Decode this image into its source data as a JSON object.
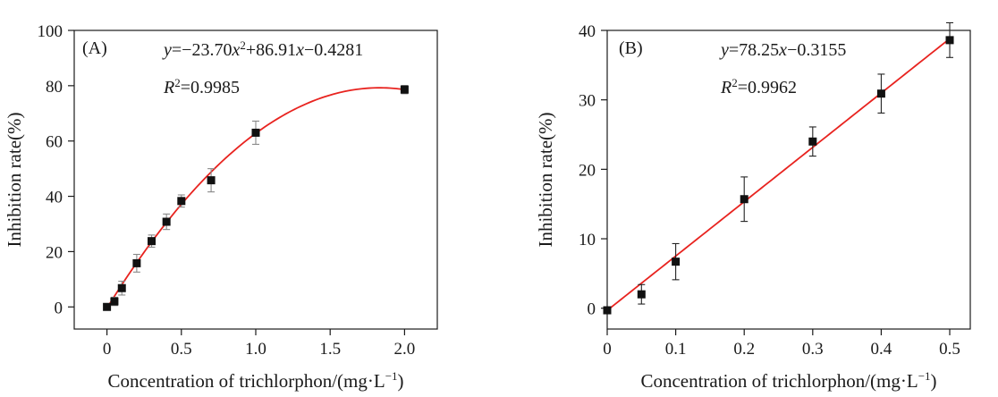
{
  "chart_data": [
    {
      "type": "scatter",
      "panel": "(A)",
      "equation": {
        "lhs": "y",
        "rhs_parts": [
          "=−23.70",
          "x",
          "2",
          "+86.91",
          "x",
          "−0.4281"
        ]
      },
      "r2": {
        "symbol": "R",
        "sup": "2",
        "value": "=0.9985"
      },
      "fit": {
        "kind": "quadratic",
        "coefficients": [
          -23.7,
          86.91,
          -0.4281
        ]
      },
      "xlabel": "Concentration of trichlorphon/(mg·L",
      "xlabel_sup": "−1",
      "xlabel_close": ")",
      "ylabel": "Inhibition rate(%)",
      "xlim": [
        -0.22,
        2.22
      ],
      "ylim": [
        -8,
        100
      ],
      "xticks": [
        0,
        0.5,
        1.0,
        1.5,
        2.0
      ],
      "xtick_labels": [
        "0",
        "0.5",
        "1.0",
        "1.5",
        "2.0"
      ],
      "yticks": [
        0,
        20,
        40,
        60,
        80,
        100
      ],
      "ytick_labels": [
        "0",
        "20",
        "40",
        "60",
        "80",
        "100"
      ],
      "points": [
        {
          "x": 0.0,
          "y": 0.0,
          "err": 0.5
        },
        {
          "x": 0.05,
          "y": 2.0,
          "err": 1.5
        },
        {
          "x": 0.1,
          "y": 6.8,
          "err": 2.5
        },
        {
          "x": 0.2,
          "y": 15.8,
          "err": 3.2
        },
        {
          "x": 0.3,
          "y": 23.8,
          "err": 2.2
        },
        {
          "x": 0.4,
          "y": 30.8,
          "err": 2.8
        },
        {
          "x": 0.5,
          "y": 38.3,
          "err": 2.2
        },
        {
          "x": 0.7,
          "y": 45.8,
          "err": 4.2
        },
        {
          "x": 1.0,
          "y": 63.0,
          "err": 4.2
        },
        {
          "x": 2.0,
          "y": 78.6,
          "err": 1.5
        }
      ],
      "fit_range": [
        0.0,
        2.0
      ],
      "fit_color": "#e8231f",
      "error_bar_color": "#888888"
    },
    {
      "type": "scatter",
      "panel": "(B)",
      "equation": {
        "lhs": "y",
        "rhs_parts": [
          "=78.25",
          "x",
          "−0.3155"
        ]
      },
      "r2": {
        "symbol": "R",
        "sup": "2",
        "value": "=0.9962"
      },
      "fit": {
        "kind": "linear",
        "coefficients": [
          78.25,
          -0.3155
        ]
      },
      "xlabel": "Concentration of trichlorphon/(mg·L",
      "xlabel_sup": "−1",
      "xlabel_close": ")",
      "ylabel": "Inhibition rate(%)",
      "xlim": [
        0,
        0.53
      ],
      "ylim": [
        -3,
        40
      ],
      "xticks": [
        0,
        0.1,
        0.2,
        0.3,
        0.4,
        0.5
      ],
      "xtick_labels": [
        "0",
        "0.1",
        "0.2",
        "0.3",
        "0.4",
        "0.5"
      ],
      "yticks": [
        0,
        10,
        20,
        30,
        40
      ],
      "ytick_labels": [
        "0",
        "10",
        "20",
        "30",
        "40"
      ],
      "points": [
        {
          "x": 0.0,
          "y": -0.3,
          "err": 0.5
        },
        {
          "x": 0.05,
          "y": 2.0,
          "err": 1.4
        },
        {
          "x": 0.1,
          "y": 6.7,
          "err": 2.6
        },
        {
          "x": 0.2,
          "y": 15.7,
          "err": 3.2
        },
        {
          "x": 0.3,
          "y": 24.0,
          "err": 2.1
        },
        {
          "x": 0.4,
          "y": 30.9,
          "err": 2.8
        },
        {
          "x": 0.5,
          "y": 38.6,
          "err": 2.5
        }
      ],
      "fit_range": [
        0.0,
        0.5
      ],
      "fit_color": "#e8231f",
      "error_bar_color": "#222222"
    }
  ]
}
